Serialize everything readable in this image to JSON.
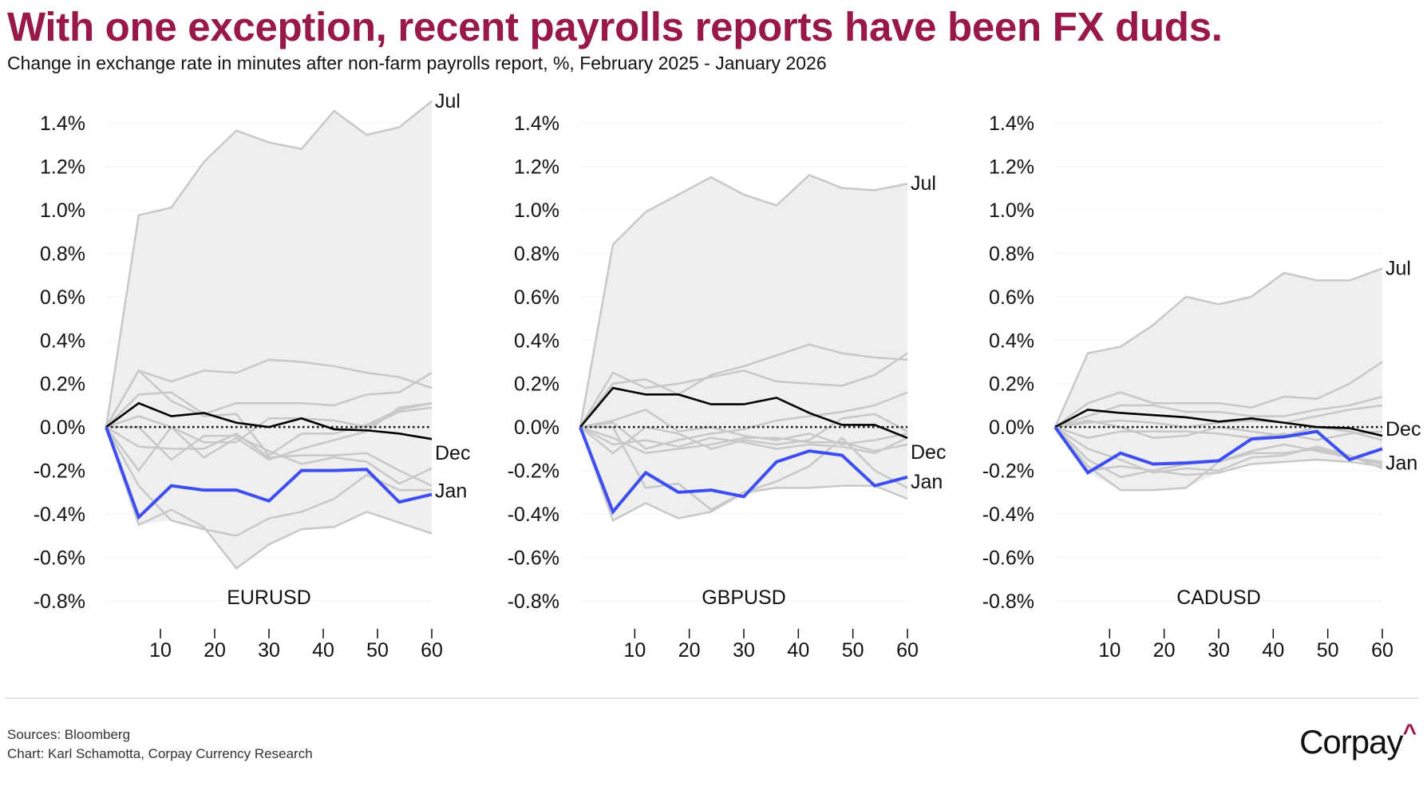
{
  "title": "With one exception, recent payrolls reports have been FX duds.",
  "subtitle_main": "Change in exchange rate in minutes after non-farm payrolls report, %,",
  "subtitle_period": " February 2025 - January 2026",
  "footer": {
    "sources": "Sources: Bloomberg",
    "credit": "Chart: Karl Schamotta, Corpay Currency Research"
  },
  "logo": "Corpay",
  "colors": {
    "title": "#98184a",
    "highlight_jan": "#3d4ef5",
    "highlight_dec": "#000000",
    "other_months": "#c8c8c8",
    "band": "#efefef"
  },
  "chart_data": [
    {
      "type": "line",
      "title": "EURUSD",
      "x": [
        0,
        6,
        12,
        18,
        24,
        30,
        36,
        42,
        48,
        54,
        60
      ],
      "x_ticks": [
        10,
        20,
        30,
        40,
        50,
        60
      ],
      "y_ticks": [
        "1.4%",
        "1.2%",
        "1.0%",
        "0.8%",
        "0.6%",
        "0.4%",
        "0.2%",
        "0.0%",
        "-0.2%",
        "-0.4%",
        "-0.6%",
        "-0.8%"
      ],
      "ylim": [
        -0.8,
        1.4
      ],
      "unit": "%",
      "series": [
        {
          "values": [
            0,
            0.26,
            0.21,
            0.26,
            0.25,
            0.31,
            0.3,
            0.28,
            0.25,
            0.23,
            0.18
          ]
        },
        {
          "values": [
            0,
            0.26,
            0.12,
            0.05,
            0.06,
            -0.13,
            -0.03,
            -0.03,
            0.01,
            0.08,
            0.11
          ]
        },
        {
          "values": [
            0,
            0.15,
            0.16,
            0.06,
            0.11,
            0.11,
            0.11,
            0.1,
            0.15,
            0.16,
            0.25
          ]
        },
        {
          "values": [
            0,
            0.05,
            0.0,
            -0.14,
            -0.05,
            -0.15,
            -0.1,
            -0.06,
            -0.02,
            0.09,
            0.11
          ]
        },
        {
          "values": [
            0,
            -0.2,
            0.0,
            -0.07,
            -0.07,
            0.04,
            0.04,
            0.03,
            0.0,
            0.07,
            0.09
          ]
        },
        {
          "values": [
            0,
            0.0,
            -0.15,
            -0.04,
            -0.04,
            -0.11,
            -0.17,
            -0.14,
            -0.16,
            -0.26,
            -0.19
          ]
        },
        {
          "values": [
            0,
            -0.27,
            -0.43,
            -0.47,
            -0.5,
            -0.42,
            -0.39,
            -0.33,
            -0.22,
            -0.29,
            -0.29
          ]
        },
        {
          "values": [
            0,
            -0.45,
            -0.38,
            -0.46,
            -0.65,
            -0.54,
            -0.47,
            -0.46,
            -0.39,
            -0.44,
            -0.49
          ]
        },
        {
          "values": [
            0,
            -0.09,
            -0.1,
            -0.1,
            -0.03,
            -0.14,
            -0.13,
            -0.13,
            -0.12,
            -0.2,
            -0.27
          ]
        },
        {
          "name": "Jul",
          "values": [
            0,
            0.975,
            1.01,
            1.22,
            1.365,
            1.31,
            1.28,
            1.455,
            1.345,
            1.38,
            1.5
          ]
        },
        {
          "name": "Dec",
          "values": [
            0,
            0.11,
            0.05,
            0.065,
            0.02,
            0.0,
            0.04,
            -0.01,
            -0.015,
            -0.03,
            -0.055
          ]
        },
        {
          "name": "Jan",
          "values": [
            0,
            -0.415,
            -0.27,
            -0.29,
            -0.29,
            -0.34,
            -0.2,
            -0.2,
            -0.195,
            -0.345,
            -0.31
          ]
        }
      ]
    },
    {
      "type": "line",
      "title": "GBPUSD",
      "x": [
        0,
        6,
        12,
        18,
        24,
        30,
        36,
        42,
        48,
        54,
        60
      ],
      "x_ticks": [
        10,
        20,
        30,
        40,
        50,
        60
      ],
      "y_ticks": [
        "1.4%",
        "1.2%",
        "1.0%",
        "0.8%",
        "0.6%",
        "0.4%",
        "0.2%",
        "0.0%",
        "-0.2%",
        "-0.4%",
        "-0.6%",
        "-0.8%"
      ],
      "ylim": [
        -0.8,
        1.4
      ],
      "unit": "%",
      "series": [
        {
          "values": [
            0,
            0.25,
            0.18,
            0.2,
            0.23,
            0.26,
            0.21,
            0.2,
            0.19,
            0.24,
            0.34
          ]
        },
        {
          "values": [
            0,
            0.2,
            0.22,
            0.15,
            0.24,
            0.28,
            0.33,
            0.38,
            0.34,
            0.32,
            0.31
          ]
        },
        {
          "values": [
            0,
            0.02,
            -0.1,
            -0.06,
            -0.03,
            -0.01,
            0.03,
            0.05,
            0.07,
            0.1,
            0.16
          ]
        },
        {
          "values": [
            0,
            -0.12,
            0.0,
            -0.03,
            -0.1,
            -0.06,
            -0.08,
            -0.06,
            0.04,
            0.06,
            -0.02
          ]
        },
        {
          "values": [
            0,
            -0.08,
            -0.06,
            -0.09,
            -0.05,
            -0.07,
            -0.1,
            -0.08,
            -0.09,
            -0.12,
            -0.05
          ]
        },
        {
          "values": [
            0,
            0.0,
            -0.28,
            -0.26,
            -0.38,
            -0.3,
            -0.25,
            -0.18,
            -0.05,
            -0.2,
            -0.28
          ]
        },
        {
          "values": [
            0,
            -0.43,
            -0.35,
            -0.42,
            -0.39,
            -0.3,
            -0.28,
            -0.28,
            -0.27,
            -0.27,
            -0.33
          ]
        },
        {
          "values": [
            0,
            0.03,
            0.08,
            -0.02,
            0.0,
            -0.04,
            -0.06,
            -0.03,
            -0.08,
            -0.06,
            -0.03
          ]
        },
        {
          "values": [
            0,
            -0.05,
            -0.12,
            -0.1,
            -0.08,
            -0.05,
            -0.05,
            -0.07,
            -0.07,
            -0.11,
            -0.08
          ]
        },
        {
          "name": "Jul",
          "values": [
            0,
            0.84,
            0.99,
            1.07,
            1.15,
            1.07,
            1.02,
            1.16,
            1.1,
            1.09,
            1.12
          ]
        },
        {
          "name": "Dec",
          "values": [
            0,
            0.18,
            0.15,
            0.15,
            0.105,
            0.105,
            0.135,
            0.065,
            0.01,
            0.01,
            -0.05
          ]
        },
        {
          "name": "Jan",
          "values": [
            0,
            -0.39,
            -0.21,
            -0.3,
            -0.29,
            -0.32,
            -0.16,
            -0.11,
            -0.13,
            -0.27,
            -0.23
          ]
        }
      ]
    },
    {
      "type": "line",
      "title": "CADUSD",
      "x": [
        0,
        6,
        12,
        18,
        24,
        30,
        36,
        42,
        48,
        54,
        60
      ],
      "x_ticks": [
        10,
        20,
        30,
        40,
        50,
        60
      ],
      "y_ticks": [
        "1.4%",
        "1.2%",
        "1.0%",
        "0.8%",
        "0.6%",
        "0.4%",
        "0.2%",
        "0.0%",
        "-0.2%",
        "-0.4%",
        "-0.6%",
        "-0.8%"
      ],
      "ylim": [
        -0.8,
        1.4
      ],
      "unit": "%",
      "series": [
        {
          "values": [
            0,
            0.11,
            0.16,
            0.11,
            0.11,
            0.11,
            0.09,
            0.14,
            0.13,
            0.2,
            0.3
          ]
        },
        {
          "values": [
            0,
            0.05,
            0.1,
            0.1,
            0.07,
            0.07,
            0.05,
            0.05,
            0.08,
            0.1,
            0.14
          ]
        },
        {
          "values": [
            0,
            0.02,
            0.03,
            0.02,
            0.0,
            0.02,
            0.03,
            0.02,
            0.05,
            0.08,
            0.1
          ]
        },
        {
          "values": [
            0,
            -0.05,
            -0.02,
            -0.02,
            -0.02,
            -0.03,
            -0.05,
            -0.03,
            -0.06,
            -0.03,
            -0.02
          ]
        },
        {
          "values": [
            0,
            -0.18,
            -0.29,
            -0.29,
            -0.28,
            -0.16,
            -0.12,
            -0.12,
            -0.1,
            -0.14,
            -0.17
          ]
        },
        {
          "values": [
            0,
            -0.15,
            -0.23,
            -0.2,
            -0.17,
            -0.16,
            -0.11,
            -0.08,
            -0.11,
            -0.14,
            -0.16
          ]
        },
        {
          "values": [
            0,
            -0.2,
            -0.18,
            -0.2,
            -0.22,
            -0.21,
            -0.17,
            -0.16,
            -0.15,
            -0.16,
            -0.18
          ]
        },
        {
          "values": [
            0,
            -0.1,
            -0.15,
            -0.21,
            -0.19,
            -0.2,
            -0.14,
            -0.13,
            -0.09,
            -0.13,
            -0.19
          ]
        },
        {
          "values": [
            0,
            0.03,
            0.0,
            -0.05,
            -0.04,
            0.0,
            -0.02,
            -0.04,
            0.0,
            -0.02,
            -0.06
          ]
        },
        {
          "name": "Jul",
          "values": [
            0,
            0.34,
            0.37,
            0.47,
            0.6,
            0.565,
            0.6,
            0.71,
            0.675,
            0.675,
            0.73
          ]
        },
        {
          "name": "Dec",
          "values": [
            0,
            0.08,
            0.065,
            0.055,
            0.045,
            0.025,
            0.04,
            0.02,
            0.0,
            -0.005,
            -0.04
          ]
        },
        {
          "name": "Jan",
          "values": [
            0,
            -0.21,
            -0.12,
            -0.17,
            -0.165,
            -0.155,
            -0.055,
            -0.045,
            -0.02,
            -0.15,
            -0.1
          ]
        }
      ]
    }
  ]
}
